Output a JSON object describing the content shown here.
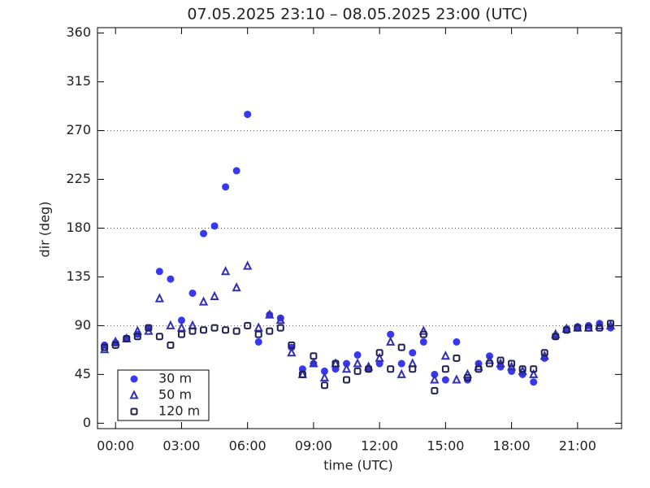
{
  "chart_data": {
    "type": "scatter",
    "title": "07.05.2025 23:10 – 08.05.2025 23:00 (UTC)",
    "x_label": "time (UTC)",
    "y_label": "dir (deg)",
    "xlim": [
      -0.82,
      23.0
    ],
    "ylim": [
      -5,
      365
    ],
    "xticks": [
      {
        "value": 0,
        "label": "00:00"
      },
      {
        "value": 3,
        "label": "03:00"
      },
      {
        "value": 6,
        "label": "06:00"
      },
      {
        "value": 9,
        "label": "09:00"
      },
      {
        "value": 12,
        "label": "12:00"
      },
      {
        "value": 15,
        "label": "15:00"
      },
      {
        "value": 18,
        "label": "18:00"
      },
      {
        "value": 21,
        "label": "21:00"
      }
    ],
    "yticks": [
      0,
      45,
      90,
      135,
      180,
      225,
      270,
      315,
      360
    ],
    "grid_y": [
      90,
      180,
      270
    ],
    "legend": "lower-left",
    "x": [
      -0.5,
      0,
      0.5,
      1,
      1.5,
      2,
      2.5,
      3,
      3.5,
      4,
      4.5,
      5,
      5.5,
      6,
      6.5,
      7,
      7.5,
      8,
      8.5,
      9,
      9.5,
      10,
      10.5,
      11,
      11.5,
      12,
      12.5,
      13,
      13.5,
      14,
      14.5,
      15,
      15.5,
      16,
      16.5,
      17,
      17.5,
      18,
      18.5,
      19,
      19.5,
      20,
      20.5,
      21,
      21.5,
      22,
      22.5
    ],
    "series": [
      {
        "name": "30 m",
        "color": "#3838f0",
        "marker": "circle",
        "values": [
          72,
          74,
          78,
          82,
          88,
          140,
          133,
          95,
          120,
          175,
          182,
          218,
          233,
          285,
          75,
          100,
          97,
          70,
          50,
          55,
          48,
          50,
          55,
          63,
          50,
          55,
          82,
          55,
          65,
          75,
          45,
          40,
          75,
          40,
          55,
          62,
          52,
          48,
          45,
          38,
          60,
          80,
          87,
          89,
          90,
          92,
          88
        ]
      },
      {
        "name": "50 m",
        "color": "#3030b0",
        "marker": "triangle",
        "values": [
          68,
          75,
          78,
          85,
          85,
          115,
          90,
          88,
          90,
          112,
          117,
          140,
          125,
          145,
          88,
          100,
          95,
          65,
          45,
          55,
          42,
          55,
          50,
          55,
          52,
          60,
          75,
          45,
          55,
          85,
          40,
          62,
          40,
          45,
          52,
          58,
          55,
          52,
          48,
          45,
          62,
          82,
          87,
          88,
          88,
          90,
          90
        ]
      },
      {
        "name": "120 m",
        "color": "#202050",
        "marker": "square",
        "values": [
          70,
          72,
          78,
          80,
          88,
          80,
          72,
          82,
          85,
          86,
          88,
          86,
          85,
          90,
          82,
          85,
          88,
          72,
          45,
          62,
          35,
          55,
          40,
          48,
          50,
          65,
          50,
          70,
          50,
          82,
          30,
          50,
          60,
          42,
          50,
          55,
          58,
          55,
          50,
          50,
          65,
          80,
          86,
          88,
          88,
          88,
          92
        ]
      }
    ]
  }
}
